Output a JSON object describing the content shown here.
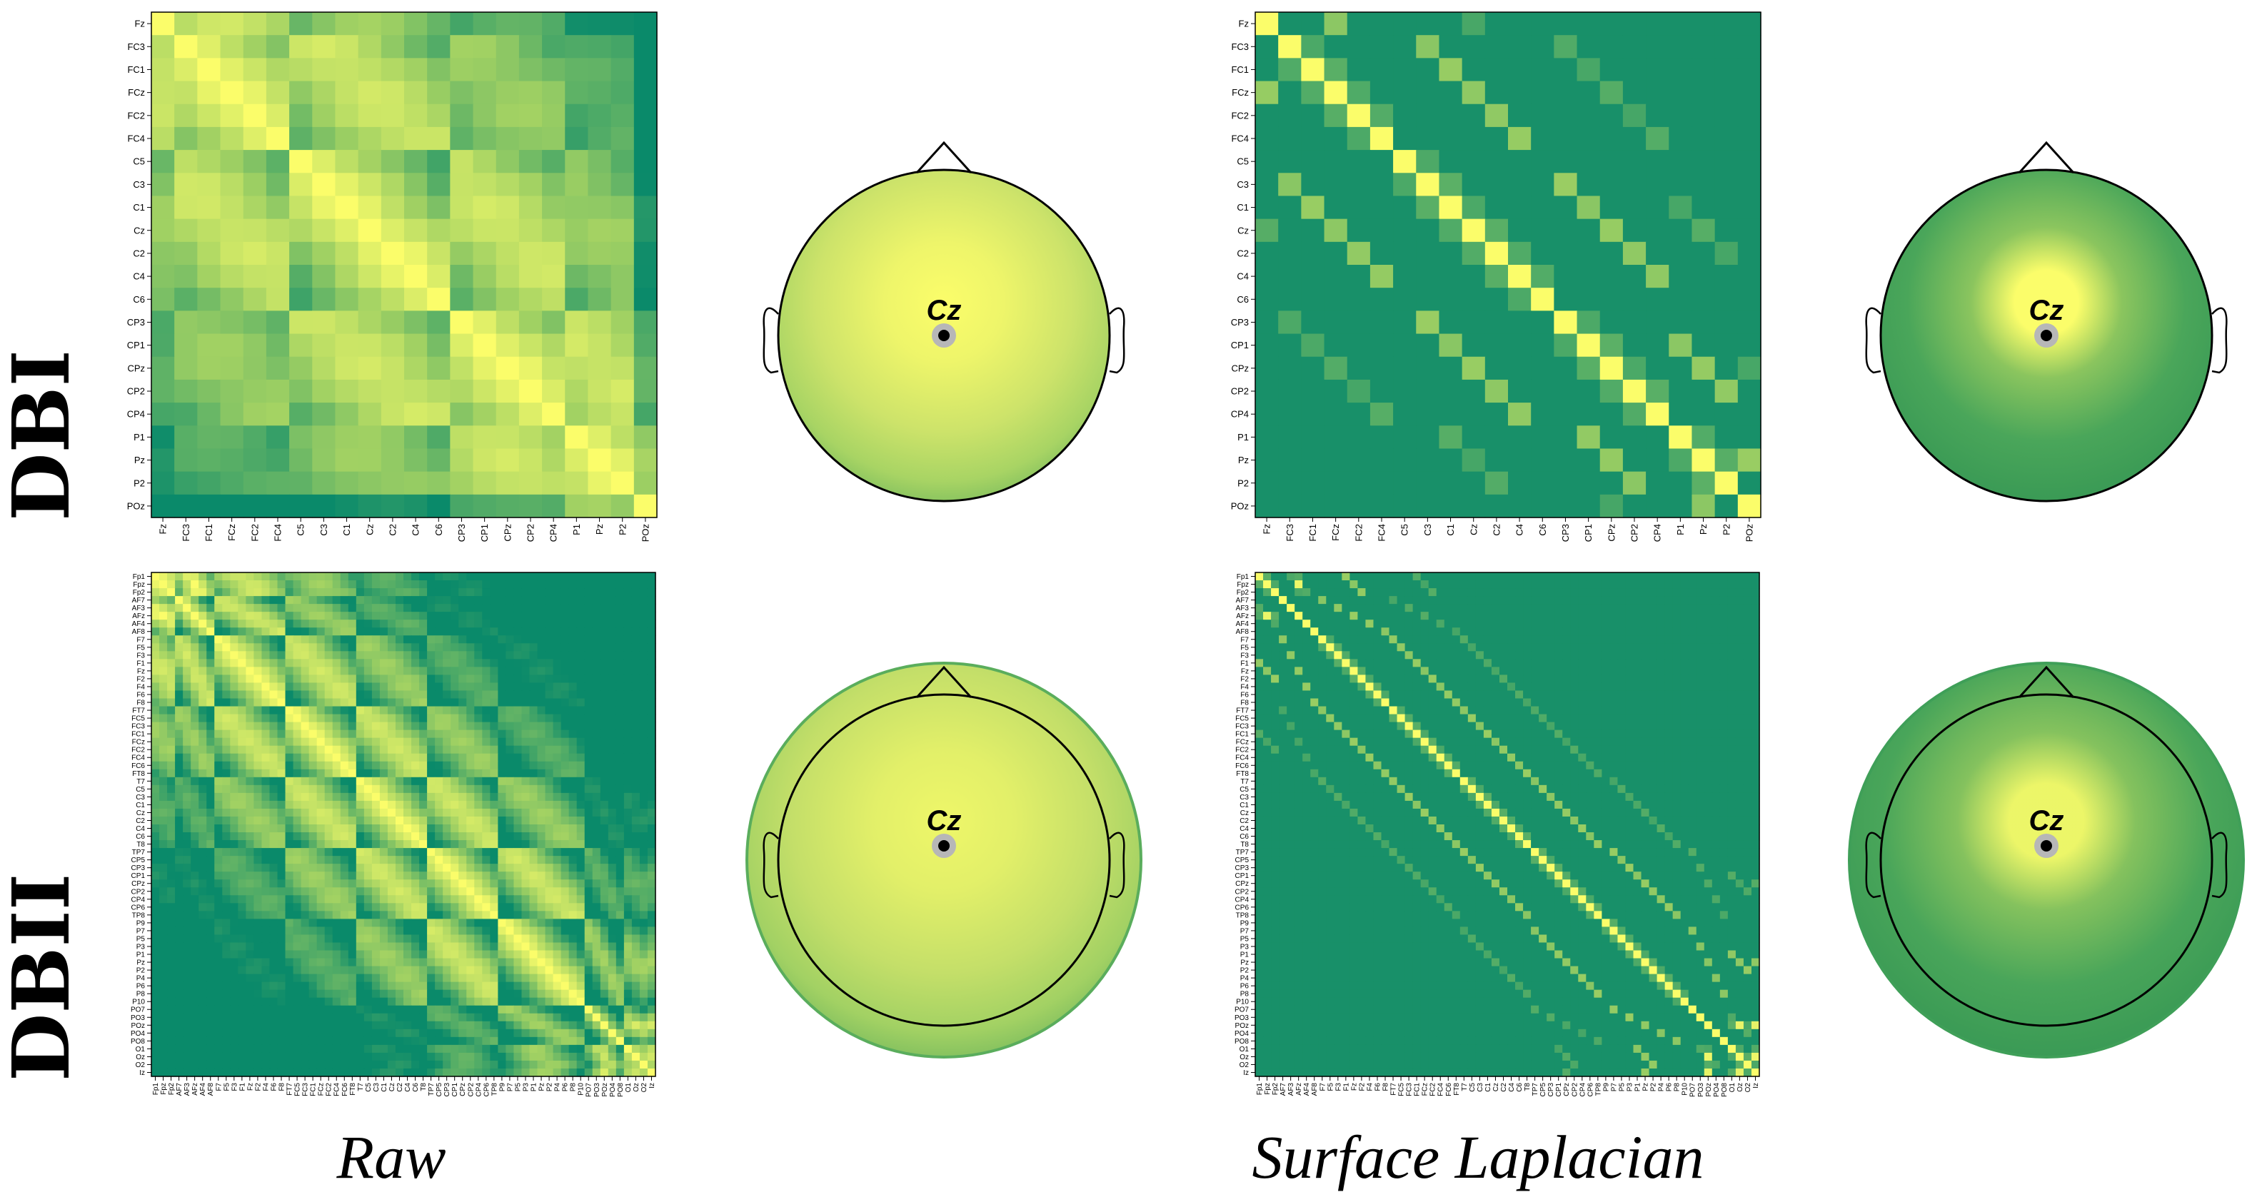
{
  "row_labels": [
    "DBI",
    "DBII"
  ],
  "column_labels": [
    "Raw",
    "Surface Laplacian"
  ],
  "electrode_label": "Cz",
  "colors": {
    "low": "#0a8a6a",
    "mid": "#9fd063",
    "high": "#fbfd6a",
    "marker": "#000000",
    "marker_ring": "#b7b7b7"
  },
  "chart_data": [
    {
      "type": "heatmap",
      "title": "",
      "row": "DBI",
      "column": "Raw",
      "channels": [
        "Fz",
        "FC3",
        "FC1",
        "FCz",
        "FC2",
        "FC4",
        "C5",
        "C3",
        "C1",
        "Cz",
        "C2",
        "C4",
        "C6",
        "CP3",
        "CP1",
        "CPz",
        "CP2",
        "CP4",
        "P1",
        "Pz",
        "P2",
        "POz"
      ],
      "tick_labels": [
        "Fz",
        "FC3",
        "FC1",
        "FCz",
        "FC2",
        "FC4",
        "C5",
        "C3",
        "C1",
        "Cz",
        "C2",
        "C4",
        "C6",
        "CP3",
        "CP1",
        "CPz",
        "CP2",
        "CP4",
        "P1",
        "Pz",
        "P2",
        "POz"
      ],
      "colorscale": "summer_r",
      "structure": "broad smooth blocks of high similarity"
    },
    {
      "type": "topomap",
      "title": "",
      "row": "DBI",
      "column": "Raw",
      "reference_channel": "Cz",
      "map": "high at Cz, slow decay towards scalp edge"
    },
    {
      "type": "heatmap",
      "title": "",
      "row": "DBI",
      "column": "Surface Laplacian",
      "channels": [
        "Fz",
        "FC3",
        "FC1",
        "FCz",
        "FC2",
        "FC4",
        "C5",
        "C3",
        "C1",
        "Cz",
        "C2",
        "C4",
        "C6",
        "CP3",
        "CP1",
        "CPz",
        "CP2",
        "CP4",
        "P1",
        "Pz",
        "P2",
        "POz"
      ],
      "tick_labels": [
        "Fz",
        "FC3",
        "FC1",
        "FCz",
        "FC2",
        "FC4",
        "C5",
        "C3",
        "C1",
        "Cz",
        "C2",
        "C4",
        "C6",
        "CP3",
        "CP1",
        "CPz",
        "CP2",
        "CP4",
        "P1",
        "Pz",
        "P2",
        "POz"
      ],
      "colorscale": "summer_r",
      "structure": "narrow high-similarity diagonal bands"
    },
    {
      "type": "topomap",
      "title": "",
      "row": "DBI",
      "column": "Surface Laplacian",
      "reference_channel": "Cz",
      "map": "focal peak at Cz"
    },
    {
      "type": "heatmap",
      "title": "",
      "row": "DBII",
      "column": "Raw",
      "channels": [
        "Fp1",
        "Fpz",
        "Fp2",
        "AF7",
        "AF3",
        "AFz",
        "AF4",
        "AF8",
        "F7",
        "F5",
        "F3",
        "F1",
        "Fz",
        "F2",
        "F4",
        "F6",
        "F8",
        "FT7",
        "FC5",
        "FC3",
        "FC1",
        "FCz",
        "FC2",
        "FC4",
        "FC6",
        "FT8",
        "T7",
        "C5",
        "C3",
        "C1",
        "Cz",
        "C2",
        "C4",
        "C6",
        "T8",
        "TP7",
        "CP5",
        "CP3",
        "CP1",
        "CPz",
        "CP2",
        "CP4",
        "CP6",
        "TP8",
        "P9",
        "P7",
        "P5",
        "P3",
        "P1",
        "Pz",
        "P2",
        "P4",
        "P6",
        "P8",
        "P10",
        "PO7",
        "PO3",
        "POz",
        "PO4",
        "PO8",
        "O1",
        "Oz",
        "O2",
        "Iz"
      ],
      "tick_labels": [
        "Fp1",
        "Fpz",
        "Fp2",
        "AF7",
        "AF3",
        "AFz",
        "AF4",
        "AF8",
        "F7",
        "F5",
        "F3",
        "F1",
        "Fz",
        "F2",
        "F4",
        "F6",
        "F8",
        "FT7",
        "FC5",
        "FC3",
        "FC1",
        "FCz",
        "FC2",
        "FC4",
        "FC6",
        "FT8",
        "T7",
        "C5",
        "C3",
        "C1",
        "Cz",
        "C2",
        "C4",
        "C6",
        "T8",
        "TP7",
        "CP5",
        "CP3",
        "CP1",
        "CPz",
        "CP2",
        "CP4",
        "CP6",
        "TP8",
        "P9",
        "P7",
        "P5",
        "P3",
        "P1",
        "Pz",
        "P2",
        "P4",
        "P6",
        "P8",
        "P10",
        "PO7",
        "PO3",
        "POz",
        "PO4",
        "PO8",
        "O1",
        "Oz",
        "O2",
        "Iz"
      ],
      "colorscale": "summer_r",
      "structure": "broad smooth blocks of high similarity"
    },
    {
      "type": "topomap",
      "title": "",
      "row": "DBII",
      "column": "Raw",
      "reference_channel": "Cz",
      "map": "high at Cz, slow decay towards scalp edge"
    },
    {
      "type": "heatmap",
      "title": "",
      "row": "DBII",
      "column": "Surface Laplacian",
      "channels": [
        "Fp1",
        "Fpz",
        "Fp2",
        "AF7",
        "AF3",
        "AFz",
        "AF4",
        "AF8",
        "F7",
        "F5",
        "F3",
        "F1",
        "Fz",
        "F2",
        "F4",
        "F6",
        "F8",
        "FT7",
        "FC5",
        "FC3",
        "FC1",
        "FCz",
        "FC2",
        "FC4",
        "FC6",
        "FT8",
        "T7",
        "C5",
        "C3",
        "C1",
        "Cz",
        "C2",
        "C4",
        "C6",
        "T8",
        "TP7",
        "CP5",
        "CP3",
        "CP1",
        "CPz",
        "CP2",
        "CP4",
        "CP6",
        "TP8",
        "P9",
        "P7",
        "P5",
        "P3",
        "P1",
        "Pz",
        "P2",
        "P4",
        "P6",
        "P8",
        "P10",
        "PO7",
        "PO3",
        "POz",
        "PO4",
        "PO8",
        "O1",
        "Oz",
        "O2",
        "Iz"
      ],
      "tick_labels": [
        "Fp1",
        "Fpz",
        "Fp2",
        "AF7",
        "AF3",
        "AFz",
        "AF4",
        "AF8",
        "F7",
        "F5",
        "F3",
        "F1",
        "Fz",
        "F2",
        "F4",
        "F6",
        "F8",
        "FT7",
        "FC5",
        "FC3",
        "FC1",
        "FCz",
        "FC2",
        "FC4",
        "FC6",
        "FT8",
        "T7",
        "C5",
        "C3",
        "C1",
        "Cz",
        "C2",
        "C4",
        "C6",
        "T8",
        "TP7",
        "CP5",
        "CP3",
        "CP1",
        "CPz",
        "CP2",
        "CP4",
        "CP6",
        "TP8",
        "P9",
        "P7",
        "P5",
        "P3",
        "P1",
        "Pz",
        "P2",
        "P4",
        "P6",
        "P8",
        "P10",
        "PO7",
        "PO3",
        "POz",
        "PO4",
        "PO8",
        "O1",
        "Oz",
        "O2",
        "Iz"
      ],
      "colorscale": "summer_r",
      "structure": "narrow high-similarity diagonal bands"
    },
    {
      "type": "topomap",
      "title": "",
      "row": "DBII",
      "column": "Surface Laplacian",
      "reference_channel": "Cz",
      "map": "focal peak at Cz"
    }
  ]
}
